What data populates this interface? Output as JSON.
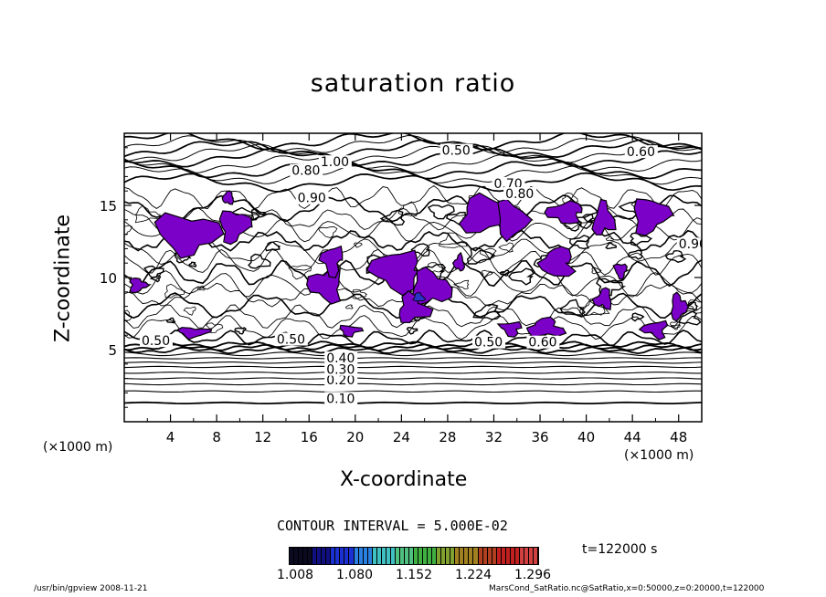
{
  "chart_data": {
    "type": "contour",
    "title": "saturation ratio",
    "xlabel": "X-coordinate",
    "ylabel": "Z-coordinate",
    "x_unit": "(×1000 m)",
    "xlim": [
      0,
      50
    ],
    "ylim": [
      0,
      20
    ],
    "x_ticks": [
      4,
      8,
      12,
      16,
      20,
      24,
      28,
      32,
      36,
      40,
      44,
      48
    ],
    "y_ticks": [
      5,
      10,
      15
    ],
    "contour_labels": [
      {
        "text": "0.10",
        "x": 17.5,
        "z": 1.5
      },
      {
        "text": "0.20",
        "x": 17.5,
        "z": 2.8
      },
      {
        "text": "0.30",
        "x": 17.5,
        "z": 3.5
      },
      {
        "text": "0.40",
        "x": 17.5,
        "z": 4.3
      },
      {
        "text": "0.50",
        "x": 27.5,
        "z": 18.7
      },
      {
        "text": "0.50",
        "x": 1.5,
        "z": 5.5
      },
      {
        "text": "0.50",
        "x": 13.2,
        "z": 5.6
      },
      {
        "text": "0.50",
        "x": 30.3,
        "z": 5.4
      },
      {
        "text": "0.60",
        "x": 43.5,
        "z": 18.6
      },
      {
        "text": "0.60",
        "x": 35.0,
        "z": 5.4
      },
      {
        "text": "0.70",
        "x": 32.0,
        "z": 16.4
      },
      {
        "text": "0.80",
        "x": 14.5,
        "z": 17.3
      },
      {
        "text": "0.80",
        "x": 33.0,
        "z": 15.7
      },
      {
        "text": "0.90",
        "x": 15.0,
        "z": 15.4
      },
      {
        "text": "0.90",
        "x": 48.0,
        "z": 12.2
      },
      {
        "text": "1.00",
        "x": 17.0,
        "z": 17.9
      }
    ],
    "contour_interval": "CONTOUR INTERVAL = 5.000E-02",
    "time": "t=122000 s",
    "colorbar_ticks": [
      "1.008",
      "1.080",
      "1.152",
      "1.224",
      "1.296"
    ],
    "colors": {
      "supersaturated_fill": "#7b00c8",
      "contour_line": "#000000"
    }
  },
  "footer": {
    "left": "/usr/bin/gpview   2008-11-21",
    "right": "MarsCond_SatRatio.nc@SatRatio,x=0:50000,z=0:20000,t=122000"
  }
}
